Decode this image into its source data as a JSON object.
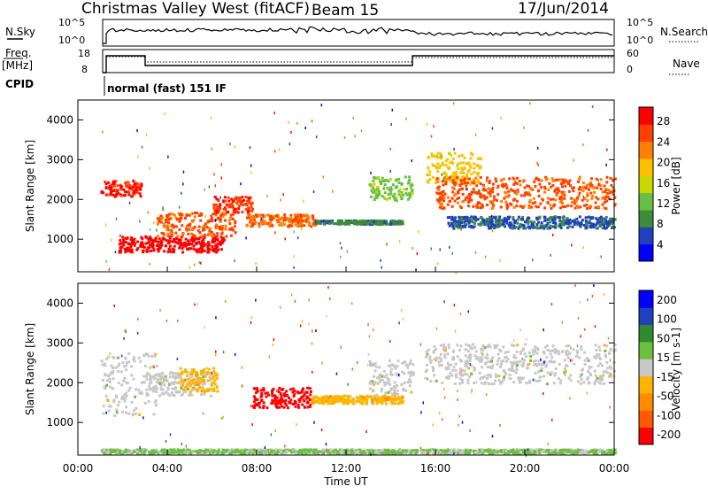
{
  "header": {
    "station": "Christmas Valley West (fitACF)",
    "beam": "Beam 15",
    "date": "17/Jun/2014"
  },
  "top_panels": {
    "nsky_label": "N.Sky",
    "nsearch_label": "N.Search",
    "nsky_ticks": [
      "10^5",
      "10^0"
    ],
    "nsearch_ticks": [
      "10^5",
      "10^0"
    ],
    "freq_label": "Freq.",
    "freq_unit": "[MHz]",
    "freq_ticks": [
      "18",
      "8"
    ],
    "nave_label": "Nave",
    "nave_ticks": [
      "60",
      "0"
    ],
    "cpid_label": "CPID",
    "cpid_text": "normal (fast) 151 IF"
  },
  "colors": {
    "power_scale": [
      "#0000ff",
      "#2040c0",
      "#3c8c3c",
      "#66c044",
      "#c8d800",
      "#ffc000",
      "#ff8000",
      "#ff4000",
      "#ff0000"
    ],
    "velocity_scale": [
      "#ff0000",
      "#ff5a00",
      "#ff8c00",
      "#ffb400",
      "#c8c8c8",
      "#6cc040",
      "#2e8b2e",
      "#2040c0",
      "#0000ff"
    ]
  },
  "chart_data": [
    {
      "type": "heatmap",
      "name": "power",
      "ylabel": "Slant Range [km]",
      "yticks": [
        "4000",
        "3000",
        "2000",
        "1000"
      ],
      "ylim": [
        180,
        4500
      ],
      "xlim": [
        0,
        24
      ],
      "colorbar_label": "Power [dB]",
      "colorbar_ticks": [
        "28",
        "24",
        "20",
        "16",
        "12",
        "8",
        "4"
      ],
      "colorbar_range": [
        0,
        30
      ],
      "features": [
        {
          "t": [
            1.0,
            2.8
          ],
          "r": [
            2100,
            2500
          ],
          "level": 27
        },
        {
          "t": [
            1.8,
            6.5
          ],
          "r": [
            700,
            1100
          ],
          "level": 29
        },
        {
          "t": [
            3.5,
            7.0
          ],
          "r": [
            1100,
            1700
          ],
          "level": 24
        },
        {
          "t": [
            6.0,
            7.8
          ],
          "r": [
            1700,
            2100
          ],
          "level": 26
        },
        {
          "t": [
            7.5,
            10.6
          ],
          "r": [
            1350,
            1650
          ],
          "level": 23
        },
        {
          "t": [
            10.6,
            14.5
          ],
          "r": [
            1400,
            1500
          ],
          "level": 8
        },
        {
          "t": [
            13.0,
            15.0
          ],
          "r": [
            2000,
            2600
          ],
          "level": 12
        },
        {
          "t": [
            15.5,
            18.0
          ],
          "r": [
            2400,
            3200
          ],
          "level": 18
        },
        {
          "t": [
            16.0,
            24.0
          ],
          "r": [
            1800,
            2600
          ],
          "level": 24
        },
        {
          "t": [
            16.5,
            24.0
          ],
          "r": [
            1300,
            1600
          ],
          "level": 6
        }
      ]
    },
    {
      "type": "heatmap",
      "name": "velocity",
      "ylabel": "Slant Range [km]",
      "yticks": [
        "4000",
        "3000",
        "2000",
        "1000"
      ],
      "ylim": [
        180,
        4500
      ],
      "xlim": [
        0,
        24
      ],
      "xticks": [
        "00:00",
        "04:00",
        "08:00",
        "12:00",
        "16:00",
        "20:00",
        "00:00"
      ],
      "xlabel": "Time UT",
      "colorbar_label": "Velocity [m s-1]",
      "colorbar_ticks": [
        "200",
        "100",
        "50",
        "15",
        "-15",
        "-50",
        "-100",
        "-200"
      ],
      "colorbar_range": [
        -250,
        250
      ],
      "features": [
        {
          "t": [
            1.0,
            3.5
          ],
          "r": [
            1200,
            2800
          ],
          "level": 0
        },
        {
          "t": [
            3.0,
            6.0
          ],
          "r": [
            1700,
            2300
          ],
          "level": 0
        },
        {
          "t": [
            4.5,
            6.2
          ],
          "r": [
            1800,
            2400
          ],
          "level": -60
        },
        {
          "t": [
            7.8,
            10.4
          ],
          "r": [
            1400,
            1900
          ],
          "level": -230
        },
        {
          "t": [
            10.4,
            14.5
          ],
          "r": [
            1500,
            1700
          ],
          "level": -60
        },
        {
          "t": [
            13.0,
            15.0
          ],
          "r": [
            1700,
            2600
          ],
          "level": 0
        },
        {
          "t": [
            15.5,
            24.0
          ],
          "r": [
            2000,
            3000
          ],
          "level": 0
        },
        {
          "t": [
            1.0,
            24.0
          ],
          "r": [
            250,
            350
          ],
          "level": 40
        }
      ]
    }
  ]
}
